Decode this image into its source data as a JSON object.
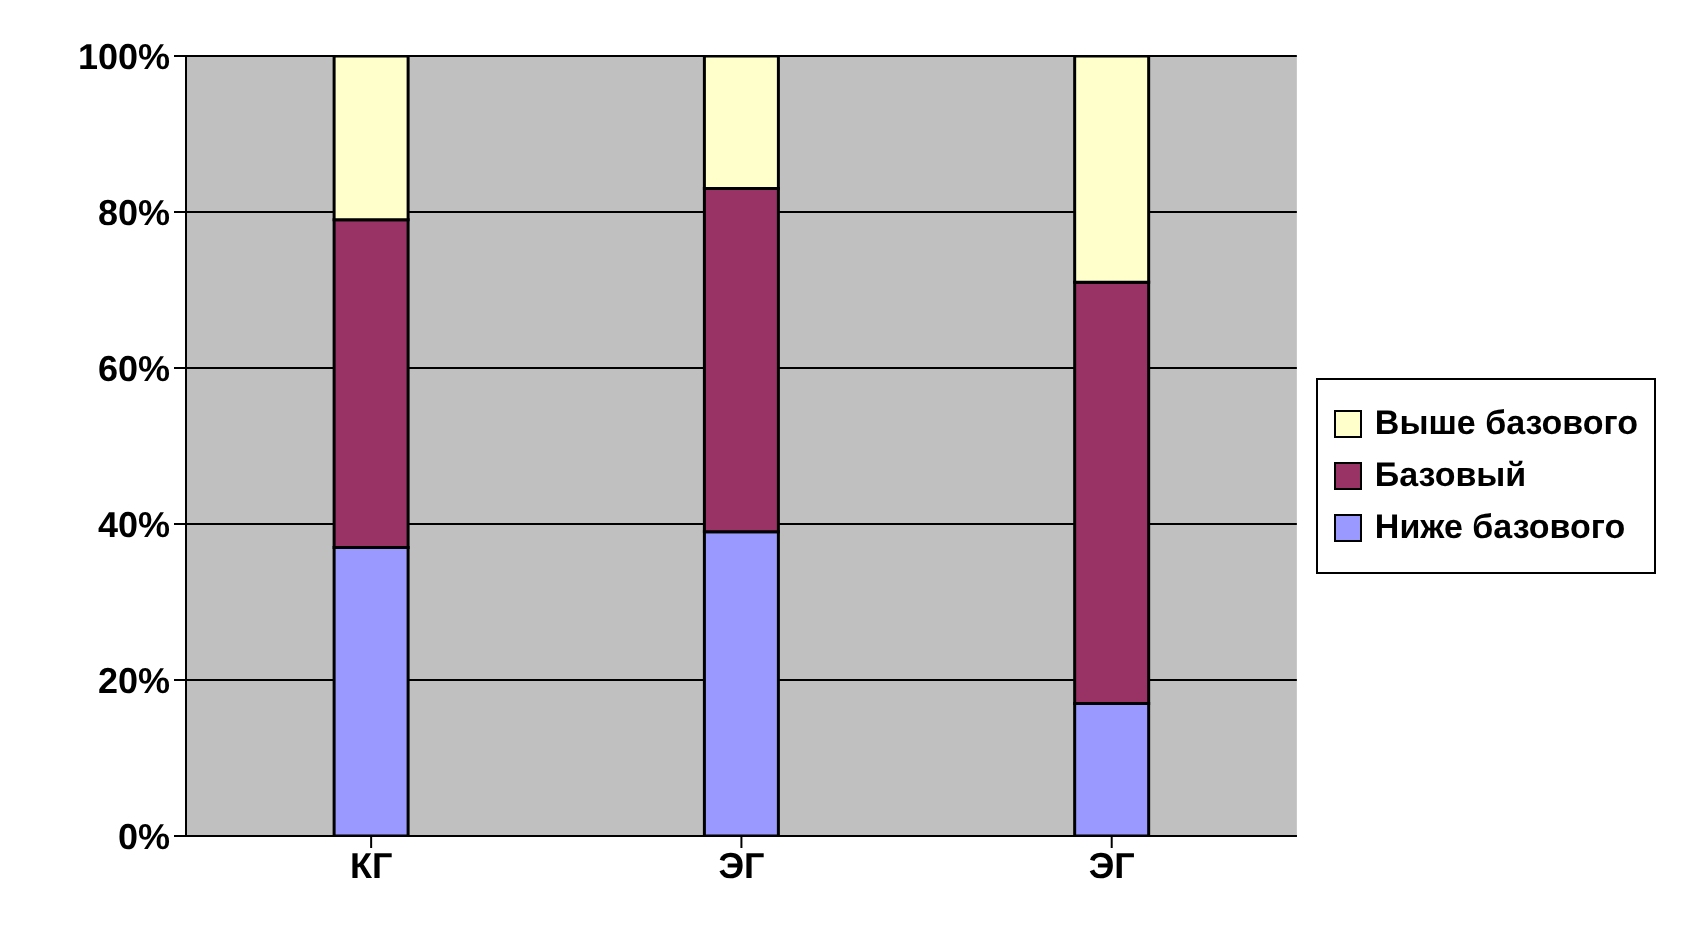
{
  "chart_data": {
    "type": "bar",
    "stacked": true,
    "categories": [
      "КГ",
      "ЭГ",
      "ЭГ"
    ],
    "series": [
      {
        "name": "Ниже базового",
        "color": "#9999ff",
        "values": [
          37,
          39,
          17
        ]
      },
      {
        "name": "Базовый",
        "color": "#993366",
        "values": [
          42,
          44,
          54
        ]
      },
      {
        "name": "Выше базового",
        "color": "#ffffcc",
        "values": [
          21,
          17,
          29
        ]
      }
    ],
    "ylim": [
      0,
      100
    ],
    "yticks": [
      {
        "value": 0,
        "label": "0%"
      },
      {
        "value": 20,
        "label": "20%"
      },
      {
        "value": 40,
        "label": "40%"
      },
      {
        "value": 60,
        "label": "60%"
      },
      {
        "value": 80,
        "label": "80%"
      },
      {
        "value": 100,
        "label": "100%"
      }
    ],
    "grid": "y",
    "legend": "right"
  }
}
